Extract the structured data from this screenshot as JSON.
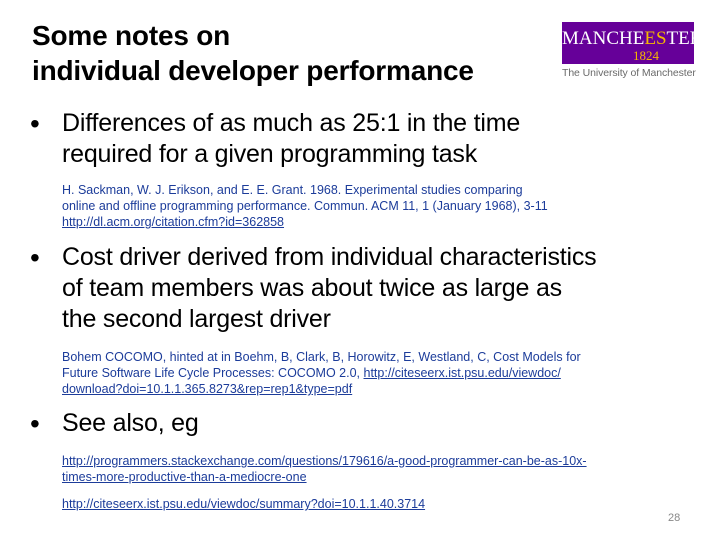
{
  "title": {
    "line1": "Some notes on",
    "line2": "individual developer performance"
  },
  "logo": {
    "name_before": "MANCHE",
    "name_highlight": "ES",
    "name_after": "TER",
    "year": "1824",
    "subtitle": "The University of Manchester"
  },
  "bullets": [
    {
      "marker": "•",
      "lines": [
        "Differences of as much as 25:1 in the time",
        "required for a given programming task"
      ],
      "ref_lines": [
        "H. Sackman, W. J. Erikson, and E. E. Grant. 1968. Experimental studies comparing",
        "online and offline programming performance. Commun. ACM 11, 1 (January 1968), 3-11"
      ],
      "ref_links": [
        "http://dl.acm.org/citation.cfm?id=362858"
      ]
    },
    {
      "marker": "•",
      "lines": [
        "Cost driver derived from individual characteristics",
        "of team members was about twice as large as",
        "the second largest driver"
      ],
      "ref_lines": [
        "Bohem COCOMO, hinted at in Boehm, B, Clark, B, Horowitz, E, Westland, C, Cost Models for"
      ],
      "ref_mixed_text": "Future Software Life Cycle Processes: COCOMO 2.0, ",
      "ref_mixed_link": "http://citeseerx.ist.psu.edu/viewdoc/",
      "ref_links": [
        "download?doi=10.1.1.365.8273&rep=rep1&type=pdf"
      ]
    },
    {
      "marker": "•",
      "lines": [
        "See also, eg"
      ],
      "ref_links": [
        "http://programmers.stackexchange.com/questions/179616/a-good-programmer-can-be-as-10x-",
        "times-more-productive-than-a-mediocre-one",
        "http://citeseerx.ist.psu.edu/viewdoc/summary?doi=10.1.1.40.3714"
      ]
    }
  ],
  "page_number": "28"
}
